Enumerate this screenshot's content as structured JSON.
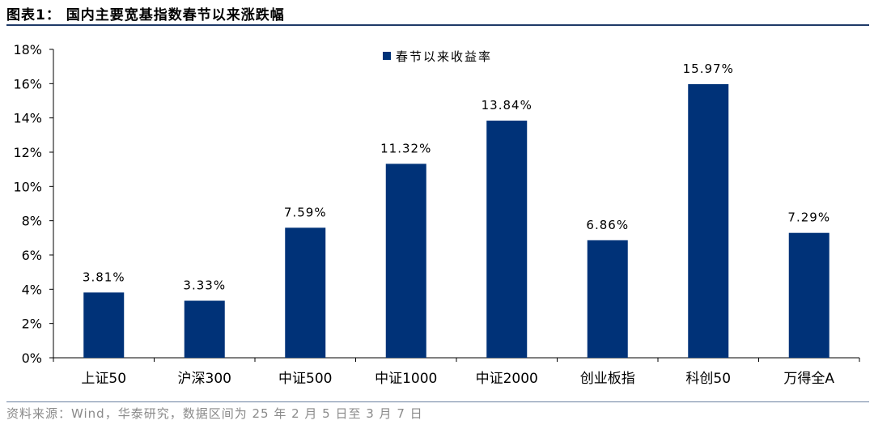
{
  "figure": {
    "title": "图表1：  国内主要宽基指数春节以来涨跌幅",
    "source": "资料来源：Wind，华泰研究，数据区间为 25 年 2 月 5 日至 3 月 7 日"
  },
  "colors": {
    "bar": "#003278",
    "rule": "#1f3a68",
    "source_text": "#8a8a8a"
  },
  "chart_data": {
    "type": "bar",
    "categories": [
      "上证50",
      "沪深300",
      "中证500",
      "中证1000",
      "中证2000",
      "创业板指",
      "科创50",
      "万得全A"
    ],
    "series": [
      {
        "name": "春节以来收益率",
        "values": [
          3.81,
          3.33,
          7.59,
          11.32,
          13.84,
          6.86,
          15.97,
          7.29
        ]
      }
    ],
    "data_labels": [
      "3.81%",
      "3.33%",
      "7.59%",
      "11.32%",
      "13.84%",
      "6.86%",
      "15.97%",
      "7.29%"
    ],
    "ylim": [
      0,
      18
    ],
    "yticks": [
      0,
      2,
      4,
      6,
      8,
      10,
      12,
      14,
      16,
      18
    ],
    "ytick_labels": [
      "0%",
      "2%",
      "4%",
      "6%",
      "8%",
      "10%",
      "12%",
      "14%",
      "16%",
      "18%"
    ],
    "xlabel": "",
    "ylabel": "",
    "grid": false,
    "legend_position": "top-center"
  }
}
